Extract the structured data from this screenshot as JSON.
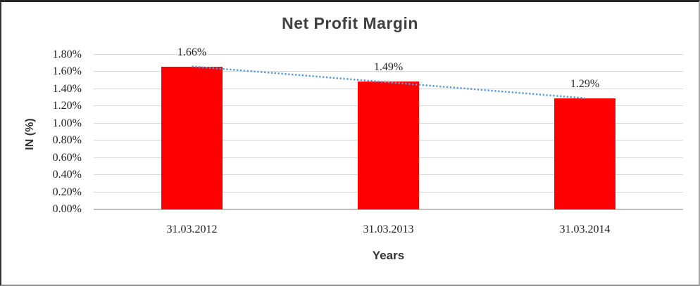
{
  "chart_data": {
    "type": "bar",
    "title": "Net Profit Margin",
    "xlabel": "Years",
    "ylabel": "IN (%)",
    "categories": [
      "31.03.2012",
      "31.03.2013",
      "31.03.2014"
    ],
    "values": [
      1.66,
      1.49,
      1.29
    ],
    "data_labels": [
      "1.66%",
      "1.49%",
      "1.29%"
    ],
    "ylim": [
      0,
      1.8
    ],
    "ytick_step": 0.2,
    "ytick_labels": [
      "0.00%",
      "0.20%",
      "0.40%",
      "0.60%",
      "0.80%",
      "1.00%",
      "1.20%",
      "1.40%",
      "1.60%",
      "1.80%"
    ],
    "grid": true,
    "legend": "none",
    "bar_color": "#FF0000",
    "trendline": {
      "type": "linear",
      "style": "dotted",
      "color": "#5B9BD5"
    },
    "colors": {
      "title": "#404040",
      "axis_title": "#333333",
      "tick_label": "#1F1F1F",
      "data_label": "#262626",
      "gridline": "#D9D9D9",
      "axis_line": "#BFBFBF"
    }
  }
}
